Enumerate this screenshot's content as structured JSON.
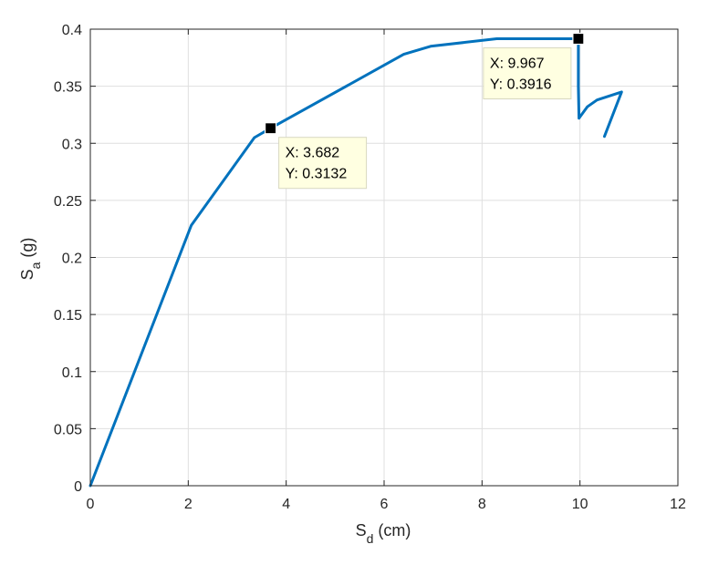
{
  "chart_data": {
    "type": "line",
    "title": "",
    "xlabel_main": "S",
    "xlabel_sub": "d",
    "xlabel_unit": " (cm)",
    "ylabel_main": "S",
    "ylabel_sub": "a",
    "ylabel_unit": " (g)",
    "xlim": [
      0,
      12
    ],
    "ylim": [
      0,
      0.4
    ],
    "grid": true,
    "line_color": "#0072BD",
    "x_ticks": [
      {
        "value": 0,
        "label": "0"
      },
      {
        "value": 2,
        "label": "2"
      },
      {
        "value": 4,
        "label": "4"
      },
      {
        "value": 6,
        "label": "6"
      },
      {
        "value": 8,
        "label": "8"
      },
      {
        "value": 10,
        "label": "10"
      },
      {
        "value": 12,
        "label": "12"
      }
    ],
    "y_ticks": [
      {
        "value": 0,
        "label": "0"
      },
      {
        "value": 0.05,
        "label": "0.05"
      },
      {
        "value": 0.1,
        "label": "0.1"
      },
      {
        "value": 0.15,
        "label": "0.15"
      },
      {
        "value": 0.2,
        "label": "0.2"
      },
      {
        "value": 0.25,
        "label": "0.25"
      },
      {
        "value": 0.3,
        "label": "0.3"
      },
      {
        "value": 0.35,
        "label": "0.35"
      },
      {
        "value": 0.4,
        "label": "0.4"
      }
    ],
    "series": [
      {
        "x": [
          0,
          2.06,
          3.35,
          3.682,
          6.4,
          6.95,
          8.3,
          9.967,
          9.967,
          9.98,
          10.15,
          10.35,
          10.85,
          10.5
        ],
        "y": [
          0,
          0.228,
          0.305,
          0.3132,
          0.378,
          0.385,
          0.3916,
          0.3916,
          0.35,
          0.322,
          0.332,
          0.338,
          0.345,
          0.306
        ]
      }
    ],
    "datatips": [
      {
        "x": 3.682,
        "y": 0.3132,
        "x_text": "X: 3.682",
        "y_text": "Y: 0.3132",
        "placement": "below-right"
      },
      {
        "x": 9.967,
        "y": 0.3916,
        "x_text": "X: 9.967",
        "y_text": "Y: 0.3916",
        "placement": "below-left"
      }
    ]
  }
}
